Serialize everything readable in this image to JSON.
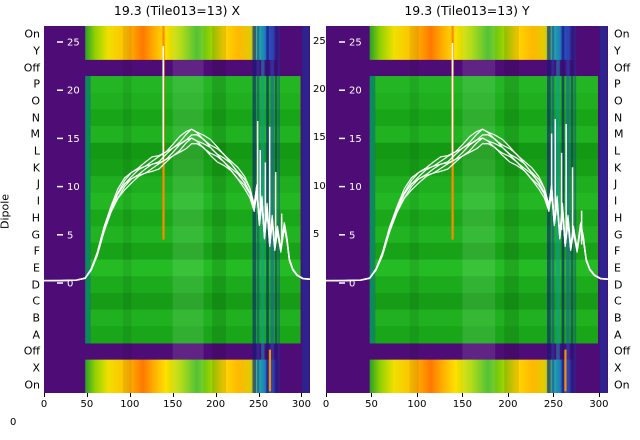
{
  "figure": {
    "ylabel": "Dipole",
    "corner_zero": "0"
  },
  "chart_data": {
    "type": "heatmap",
    "description": "Two per-dipole waterfall heatmaps (polarisation X and Y) with overlaid white power-vs-channel traces",
    "x_range": [
      0,
      310
    ],
    "x_ticks": [
      0,
      50,
      100,
      150,
      200,
      250,
      300
    ],
    "value_ticks": [
      25,
      20,
      15,
      10,
      5,
      0
    ],
    "value_axis": {
      "min": 0,
      "max": 27
    },
    "rows": [
      {
        "label": "On",
        "kind": "band"
      },
      {
        "label": "Y",
        "kind": "band"
      },
      {
        "label": "Off",
        "kind": "off"
      },
      {
        "label": "P",
        "kind": "green",
        "color": "#23b523"
      },
      {
        "label": "O",
        "kind": "green",
        "color": "#1faf1f"
      },
      {
        "label": "N",
        "kind": "green",
        "color": "#18a518"
      },
      {
        "label": "M",
        "kind": "green",
        "color": "#20b220"
      },
      {
        "label": "L",
        "kind": "green",
        "color": "#149914"
      },
      {
        "label": "K",
        "kind": "green",
        "color": "#17a017"
      },
      {
        "label": "J",
        "kind": "green",
        "color": "#1fae1f"
      },
      {
        "label": "I",
        "kind": "green",
        "color": "#23b823"
      },
      {
        "label": "H",
        "kind": "green",
        "color": "#1aa81a"
      },
      {
        "label": "G",
        "kind": "green",
        "color": "#21b321"
      },
      {
        "label": "F",
        "kind": "green",
        "color": "#18a218"
      },
      {
        "label": "E",
        "kind": "green",
        "color": "#25bb25"
      },
      {
        "label": "D",
        "kind": "green",
        "color": "#1cab1c"
      },
      {
        "label": "C",
        "kind": "green",
        "color": "#169c16"
      },
      {
        "label": "B",
        "kind": "green",
        "color": "#20b020"
      },
      {
        "label": "A",
        "kind": "green",
        "color": "#19a619"
      },
      {
        "label": "Off",
        "kind": "off"
      },
      {
        "label": "X",
        "kind": "band"
      },
      {
        "label": "On",
        "kind": "band"
      }
    ],
    "colors": {
      "purple": "#4e0c77",
      "teal_lead": "#0c8a5e",
      "curve": "#ffffff",
      "orange_line": "#ff8a00",
      "text": "#000000"
    },
    "band_stops": [
      [
        0,
        "#2aa02a"
      ],
      [
        0.05,
        "#8fd000"
      ],
      [
        0.12,
        "#f0e000"
      ],
      [
        0.21,
        "#ffc000"
      ],
      [
        0.3,
        "#ff7800"
      ],
      [
        0.36,
        "#ffb000"
      ],
      [
        0.42,
        "#ffe000"
      ],
      [
        0.5,
        "#a8d800"
      ],
      [
        0.58,
        "#40bc20"
      ],
      [
        0.66,
        "#a0d400"
      ],
      [
        0.72,
        "#ffd800"
      ],
      [
        0.8,
        "#ffb800"
      ],
      [
        0.86,
        "#e0cc00"
      ],
      [
        0.9,
        "#28b49c"
      ],
      [
        0.95,
        "#2f55c8"
      ],
      [
        1,
        "#4a1a86"
      ]
    ],
    "overlays": [
      {
        "x": 92,
        "w": 10,
        "color": "#000000",
        "o": 0.07
      },
      {
        "x": 150,
        "w": 36,
        "color": "#ffffff",
        "o": 0.1
      },
      {
        "x": 196,
        "w": 16,
        "color": "#000000",
        "o": 0.1
      },
      {
        "x": 243,
        "w": 4,
        "color": "#0a1c78",
        "o": 0.6
      },
      {
        "x": 248,
        "w": 3,
        "color": "#1244a8",
        "o": 0.55
      },
      {
        "x": 253,
        "w": 4,
        "color": "#0c96b4",
        "o": 0.55
      },
      {
        "x": 259,
        "w": 3,
        "color": "#0a1c78",
        "o": 0.65
      },
      {
        "x": 264,
        "w": 4,
        "color": "#1a50c0",
        "o": 0.5
      },
      {
        "x": 269,
        "w": 3,
        "color": "#0a1c78",
        "o": 0.5
      },
      {
        "x": 273,
        "w": 2,
        "color": "#123a9e",
        "o": 0.45
      },
      {
        "x": 301,
        "w": 8,
        "color": "#1c2f9c",
        "o": 0.65
      }
    ],
    "orange_lines": [
      {
        "x": 138,
        "row_start": 0,
        "row_end": 12.8
      },
      {
        "x": 262,
        "row_start": 19.4,
        "row_end": 21.9
      }
    ],
    "n_traces": 6,
    "base_curve": [
      [
        0,
        0.25
      ],
      [
        20,
        0.25
      ],
      [
        38,
        0.3
      ],
      [
        48,
        0.5
      ],
      [
        55,
        1.4
      ],
      [
        62,
        3.0
      ],
      [
        70,
        5.6
      ],
      [
        78,
        7.6
      ],
      [
        86,
        9.2
      ],
      [
        94,
        10.3
      ],
      [
        102,
        11.0
      ],
      [
        110,
        11.5
      ],
      [
        118,
        11.9
      ],
      [
        126,
        12.3
      ],
      [
        134,
        12.6
      ],
      [
        142,
        13.1
      ],
      [
        150,
        13.7
      ],
      [
        158,
        14.3
      ],
      [
        166,
        14.9
      ],
      [
        172,
        15.3
      ],
      [
        178,
        15.1
      ],
      [
        186,
        14.6
      ],
      [
        194,
        14.0
      ],
      [
        202,
        13.4
      ],
      [
        210,
        12.8
      ],
      [
        218,
        12.1
      ],
      [
        226,
        11.3
      ],
      [
        234,
        10.4
      ],
      [
        240,
        9.4
      ],
      [
        245,
        7.8
      ],
      [
        248,
        9.8
      ],
      [
        251,
        6.2
      ],
      [
        254,
        8.6
      ],
      [
        257,
        4.8
      ],
      [
        260,
        7.8
      ],
      [
        263,
        4.0
      ],
      [
        266,
        6.6
      ],
      [
        269,
        3.6
      ],
      [
        272,
        5.6
      ],
      [
        276,
        3.4
      ],
      [
        280,
        6.0
      ],
      [
        283,
        4.6
      ],
      [
        286,
        2.4
      ],
      [
        290,
        1.4
      ],
      [
        295,
        0.8
      ],
      [
        302,
        0.45
      ],
      [
        310,
        0.4
      ]
    ],
    "panels": [
      {
        "title": "19.3 (Tile013=13) X",
        "right_value_labels": [
          25,
          20,
          15,
          10,
          5
        ],
        "spikes": [
          {
            "x": 139,
            "v": 24.6,
            "v0": 12.8
          },
          {
            "x": 249,
            "v": 16.8,
            "v0": 8.5
          },
          {
            "x": 252,
            "v": 13.8,
            "v0": 7
          },
          {
            "x": 258,
            "v": 12.5,
            "v0": 5.5
          },
          {
            "x": 263,
            "v": 16.2,
            "v0": 5
          },
          {
            "x": 270,
            "v": 11.5,
            "v0": 4.5
          },
          {
            "x": 277,
            "v": 7.2,
            "v0": 4
          }
        ]
      },
      {
        "title": "19.3 (Tile013=13) Y",
        "right_value_labels": [],
        "spikes": [
          {
            "x": 139,
            "v": 24.9,
            "v0": 12.8
          },
          {
            "x": 248,
            "v": 15.5,
            "v0": 8.5
          },
          {
            "x": 252,
            "v": 17.0,
            "v0": 7
          },
          {
            "x": 259,
            "v": 13.5,
            "v0": 5.5
          },
          {
            "x": 264,
            "v": 16.5,
            "v0": 5
          },
          {
            "x": 271,
            "v": 12.0,
            "v0": 4.5
          },
          {
            "x": 281,
            "v": 7.5,
            "v0": 4
          }
        ]
      }
    ]
  }
}
